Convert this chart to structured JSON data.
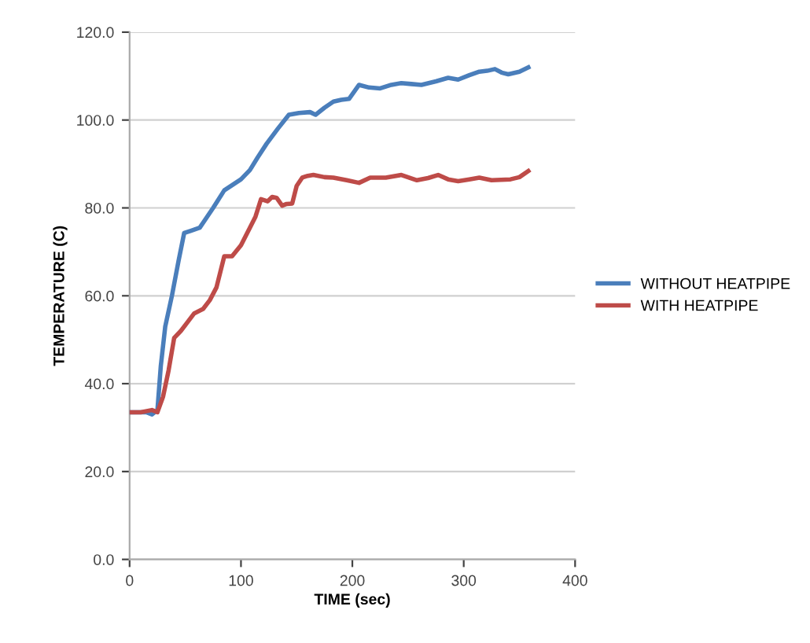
{
  "chart_data": {
    "type": "line",
    "xlabel": "TIME (sec)",
    "ylabel": "TEMPERATURE (C)",
    "xlim": [
      0,
      400
    ],
    "xticks": [
      0,
      100,
      200,
      300,
      400
    ],
    "ylim": [
      0,
      120
    ],
    "yticks": [
      {
        "value": 0,
        "label": "0.0"
      },
      {
        "value": 20,
        "label": "20.0"
      },
      {
        "value": 40,
        "label": "40.0"
      },
      {
        "value": 60,
        "label": "60.0"
      },
      {
        "value": 80,
        "label": "80.0"
      },
      {
        "value": 100,
        "label": "100.0"
      },
      {
        "value": 120,
        "label": "120.0"
      }
    ],
    "grid": "y",
    "legend": "right",
    "marker": "none",
    "line_style": "solid",
    "series": [
      {
        "name": "WITHOUT HEATPIPE",
        "color": "#4a7ebb",
        "x": [
          0,
          15,
          20,
          25,
          28,
          32,
          38,
          44,
          49,
          55,
          63,
          75,
          85,
          100,
          108,
          115,
          123,
          133,
          143,
          152,
          162,
          167,
          175,
          183,
          190,
          197,
          206,
          215,
          225,
          235,
          244,
          253,
          262,
          275,
          286,
          295,
          305,
          314,
          321,
          328,
          334,
          340,
          350,
          358
        ],
        "values": [
          33.5,
          33.5,
          33,
          34,
          44,
          53,
          60,
          68,
          74.3,
          74.8,
          75.5,
          80,
          84,
          86.5,
          88.6,
          91.5,
          94.6,
          98,
          101.2,
          101.6,
          101.8,
          101.2,
          102.8,
          104.2,
          104.6,
          104.8,
          108,
          107.4,
          107.2,
          108,
          108.4,
          108.2,
          108,
          108.8,
          109.6,
          109.2,
          110.2,
          111,
          111.2,
          111.6,
          110.8,
          110.4,
          111,
          112
        ]
      },
      {
        "name": "WITH HEATPIPE",
        "color": "#be4b48",
        "x": [
          0,
          10,
          20,
          25,
          30,
          35,
          40,
          46,
          52,
          58,
          66,
          72,
          78,
          85,
          92,
          100,
          108,
          113,
          118,
          124,
          128,
          132,
          137,
          141,
          146,
          150,
          155,
          160,
          165,
          175,
          183,
          195,
          206,
          216,
          230,
          244,
          258,
          268,
          277,
          286,
          295,
          305,
          314,
          325,
          342,
          350,
          358
        ],
        "values": [
          33.5,
          33.5,
          34,
          33.5,
          37,
          43,
          50.4,
          52,
          54,
          56,
          57,
          59,
          61.9,
          69,
          69,
          71.5,
          75.5,
          78,
          82,
          81.5,
          82.5,
          82.3,
          80.5,
          80.9,
          81,
          85,
          86.9,
          87.3,
          87.5,
          87,
          86.9,
          86.3,
          85.7,
          86.9,
          86.9,
          87.5,
          86.3,
          86.8,
          87.5,
          86.5,
          86.1,
          86.5,
          86.9,
          86.3,
          86.5,
          87,
          88.4
        ]
      }
    ]
  }
}
